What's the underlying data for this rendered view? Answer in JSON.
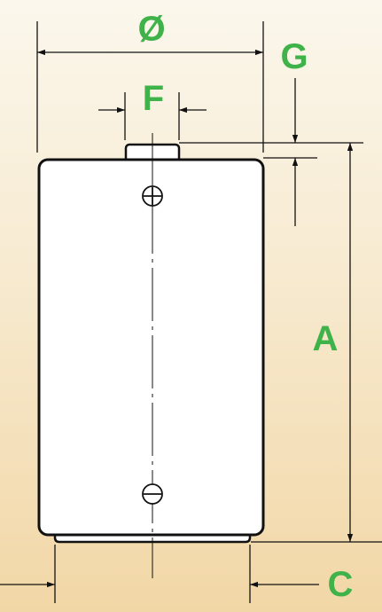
{
  "diagram": {
    "labels": {
      "diameter": "Ø",
      "height": "A",
      "bottom_offset": "C",
      "terminal_width": "F",
      "terminal_height": "G"
    },
    "terminals": {
      "positive": "+",
      "negative": "−"
    },
    "colors": {
      "label_green": "#3fb24a",
      "line_black": "#111111",
      "battery_fill": "#ffffff",
      "background_top": "#fbf7ec",
      "background_bottom": "#f2d7a6"
    }
  }
}
